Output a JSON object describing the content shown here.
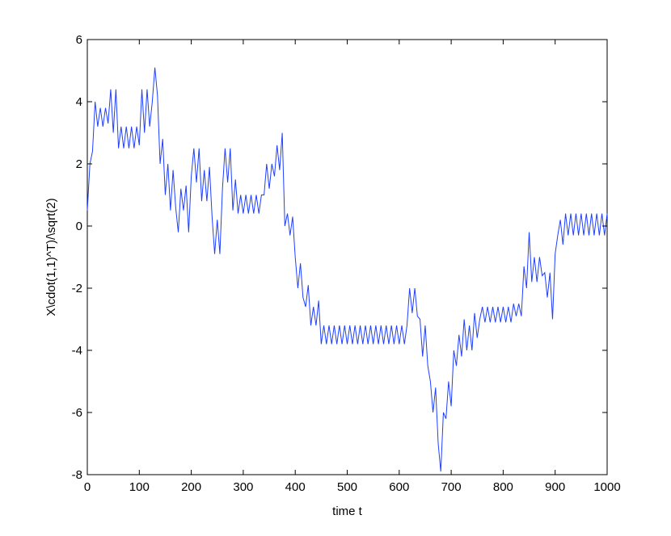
{
  "chart_data": {
    "type": "line",
    "xlabel": "time t",
    "ylabel": "X\\cdot(1,1)^T)/\\sqrt(2)",
    "color": "#1f3fff",
    "xlim": [
      0,
      1000
    ],
    "xticks": [
      0,
      100,
      200,
      300,
      400,
      500,
      600,
      700,
      800,
      900,
      1000
    ],
    "ylim": [
      -8,
      6
    ],
    "yticks": [
      -8,
      -6,
      -4,
      -2,
      0,
      2,
      4,
      6
    ],
    "x": [
      0,
      5,
      10,
      15,
      20,
      25,
      30,
      35,
      40,
      45,
      50,
      55,
      60,
      65,
      70,
      75,
      80,
      85,
      90,
      95,
      100,
      105,
      110,
      115,
      120,
      125,
      130,
      135,
      140,
      145,
      150,
      155,
      160,
      165,
      170,
      175,
      180,
      185,
      190,
      195,
      200,
      205,
      210,
      215,
      220,
      225,
      230,
      235,
      240,
      245,
      250,
      255,
      260,
      265,
      270,
      275,
      280,
      285,
      290,
      295,
      300,
      305,
      310,
      315,
      320,
      325,
      330,
      335,
      340,
      345,
      350,
      355,
      360,
      365,
      370,
      375,
      380,
      385,
      390,
      395,
      400,
      405,
      410,
      415,
      420,
      425,
      430,
      435,
      440,
      445,
      450,
      455,
      460,
      465,
      470,
      475,
      480,
      485,
      490,
      495,
      500,
      505,
      510,
      515,
      520,
      525,
      530,
      535,
      540,
      545,
      550,
      555,
      560,
      565,
      570,
      575,
      580,
      585,
      590,
      595,
      600,
      605,
      610,
      615,
      620,
      625,
      630,
      635,
      640,
      645,
      650,
      655,
      660,
      665,
      670,
      675,
      680,
      685,
      690,
      695,
      700,
      705,
      710,
      715,
      720,
      725,
      730,
      735,
      740,
      745,
      750,
      755,
      760,
      765,
      770,
      775,
      780,
      785,
      790,
      795,
      800,
      805,
      810,
      815,
      820,
      825,
      830,
      835,
      840,
      845,
      850,
      855,
      860,
      865,
      870,
      875,
      880,
      885,
      890,
      895,
      900,
      905,
      910,
      915,
      920,
      925,
      930,
      935,
      940,
      945,
      950,
      955,
      960,
      965,
      970,
      975,
      980,
      985,
      990,
      995,
      1000
    ],
    "values": [
      0.5,
      2.0,
      2.4,
      4.0,
      3.2,
      3.8,
      3.2,
      3.8,
      3.3,
      4.4,
      3.0,
      4.4,
      2.5,
      3.2,
      2.5,
      3.2,
      2.5,
      3.2,
      2.5,
      3.2,
      2.6,
      4.4,
      3.0,
      4.4,
      3.2,
      4.0,
      5.1,
      4.2,
      2.0,
      2.8,
      1.0,
      2.0,
      0.5,
      1.8,
      0.6,
      -0.2,
      1.2,
      0.5,
      1.3,
      -0.2,
      1.6,
      2.5,
      1.4,
      2.5,
      0.8,
      1.8,
      0.8,
      1.9,
      0.3,
      -0.9,
      0.2,
      -0.9,
      1.2,
      2.5,
      1.4,
      2.5,
      0.5,
      1.5,
      0.4,
      1.0,
      0.4,
      1.0,
      0.4,
      1.0,
      0.4,
      1.0,
      0.4,
      1.0,
      1.0,
      2.0,
      1.2,
      2.0,
      1.6,
      2.6,
      1.8,
      3.0,
      0.0,
      0.4,
      -0.3,
      0.3,
      -1.0,
      -2.0,
      -1.2,
      -2.3,
      -2.6,
      -1.9,
      -3.2,
      -2.6,
      -3.2,
      -2.4,
      -3.8,
      -3.2,
      -3.8,
      -3.2,
      -3.8,
      -3.2,
      -3.8,
      -3.2,
      -3.8,
      -3.2,
      -3.8,
      -3.2,
      -3.8,
      -3.2,
      -3.8,
      -3.2,
      -3.8,
      -3.2,
      -3.8,
      -3.2,
      -3.8,
      -3.2,
      -3.8,
      -3.2,
      -3.8,
      -3.2,
      -3.8,
      -3.2,
      -3.8,
      -3.2,
      -3.8,
      -3.2,
      -3.8,
      -3.2,
      -2.0,
      -2.8,
      -2.0,
      -2.9,
      -3.0,
      -4.2,
      -3.2,
      -4.5,
      -5.0,
      -6.0,
      -5.2,
      -7.0,
      -7.9,
      -6.0,
      -6.2,
      -5.0,
      -5.8,
      -4.0,
      -4.5,
      -3.5,
      -4.2,
      -3.0,
      -4.0,
      -3.2,
      -4.0,
      -2.8,
      -3.6,
      -3.0,
      -2.6,
      -3.1,
      -2.6,
      -3.1,
      -2.6,
      -3.1,
      -2.6,
      -3.1,
      -2.6,
      -3.1,
      -2.6,
      -3.1,
      -2.5,
      -2.9,
      -2.5,
      -2.9,
      -1.3,
      -2.0,
      -0.2,
      -1.8,
      -1.0,
      -1.8,
      -1.0,
      -1.6,
      -1.5,
      -2.3,
      -1.5,
      -3.0,
      -0.9,
      -0.3,
      0.2,
      -0.6,
      0.4,
      -0.3,
      0.4,
      -0.3,
      0.4,
      -0.3,
      0.4,
      -0.3,
      0.4,
      -0.3,
      0.4,
      -0.3,
      0.4,
      -0.3,
      0.4,
      -0.3,
      0.4
    ]
  }
}
